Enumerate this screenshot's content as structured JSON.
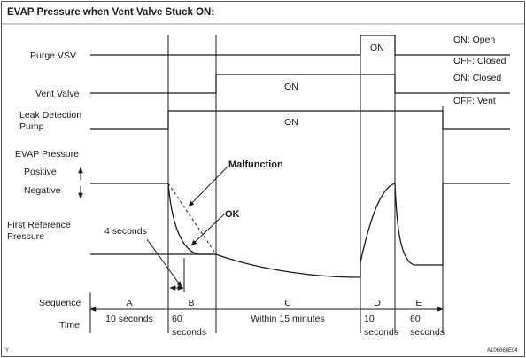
{
  "title": "EVAP Pressure when Vent Valve Stuck ON:",
  "rows": {
    "purge_vsv": "Purge VSV",
    "vent_valve": "Vent Valve",
    "leak_detection_pump_line1": "Leak Detection",
    "leak_detection_pump_line2": "Pump",
    "evap_pressure": "EVAP Pressure",
    "positive": "Positive",
    "negative": "Negative",
    "first_reference_line1": "First Reference",
    "first_reference_line2": "Pressure",
    "sequence": "Sequence",
    "time": "Time"
  },
  "states": {
    "purge_on": "ON",
    "vent_on": "ON",
    "pump_on": "ON"
  },
  "legend": {
    "on_open": "ON: Open",
    "off_closed": "OFF: Closed",
    "on_closed": "ON: Closed",
    "off_vent": "OFF: Vent"
  },
  "annotations": {
    "malfunction": "Malfunction",
    "ok": "OK",
    "four_seconds": "4 seconds"
  },
  "sequence": [
    "A",
    "B",
    "C",
    "D",
    "E"
  ],
  "times": {
    "a": "10 seconds",
    "b_line1": "60",
    "b_line2": "seconds",
    "c": "Within 15 minutes",
    "d_line1": "10",
    "d_line2": "seconds",
    "e_line1": "60",
    "e_line2": "seconds"
  },
  "corner_left": "Y",
  "figure_id": "A106068E04"
}
